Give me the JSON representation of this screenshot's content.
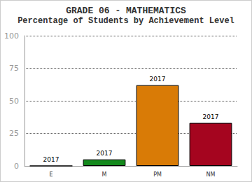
{
  "chart_data": {
    "type": "bar",
    "title": "GRADE 06 - MATHEMATICS",
    "subtitle": "Percentage of Students by Achievement Level",
    "categories": [
      "E",
      "M",
      "PM",
      "NM"
    ],
    "values": [
      0,
      5,
      62,
      33
    ],
    "colors": [
      "#1f4e9c",
      "#13891c",
      "#d97b06",
      "#a5051f"
    ],
    "annotations": [
      "2017",
      "2017",
      "2017",
      "2017"
    ],
    "ylim": [
      0,
      100
    ],
    "yticks": [
      0,
      25,
      50,
      75,
      100
    ],
    "grid": true
  }
}
